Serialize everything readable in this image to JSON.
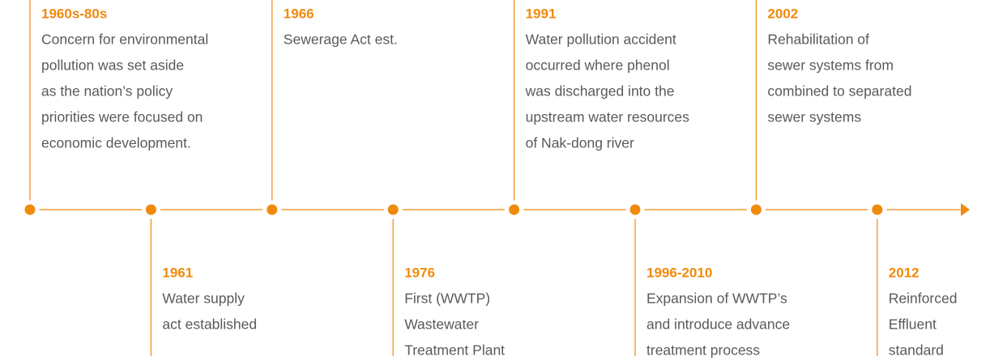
{
  "events": [
    {
      "year": "1960s-80s",
      "lines": [
        "Concern for environmental",
        "pollution was set aside",
        "as the nation’s policy",
        "priorities were focused on",
        "economic development."
      ]
    },
    {
      "year": "1961",
      "lines": [
        "Water supply",
        "act established"
      ]
    },
    {
      "year": "1966",
      "lines": [
        "Sewerage Act est."
      ]
    },
    {
      "year": "1976",
      "lines": [
        "First (WWTP)",
        "Wastewater",
        "Treatment Plant"
      ]
    },
    {
      "year": "1991",
      "lines": [
        "Water pollution accident",
        "occurred where phenol",
        "was discharged into the",
        "upstream water resources",
        "of Nak-dong river"
      ]
    },
    {
      "year": "1996-2010",
      "lines": [
        "Expansion of WWTP’s",
        "and introduce advance",
        "treatment process"
      ]
    },
    {
      "year": "2002",
      "lines": [
        "Rehabilitation of",
        "sewer systems from",
        "combined to separated",
        "sewer systems"
      ]
    },
    {
      "year": "2012",
      "lines": [
        "Reinforced",
        "Effluent",
        "standard"
      ]
    }
  ]
}
